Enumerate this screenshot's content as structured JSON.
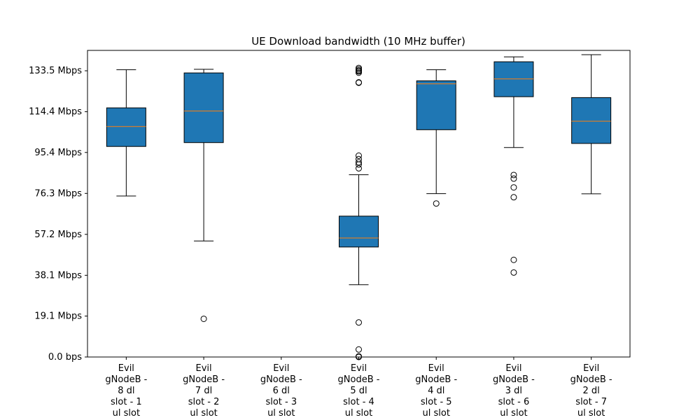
{
  "chart_data": {
    "type": "boxplot",
    "title": "UE Download bandwidth (10 MHz buffer)",
    "xlabel": "",
    "ylabel": "",
    "ylim": [
      0,
      143
    ],
    "yticks": [
      0,
      19.1,
      38.1,
      57.2,
      76.3,
      95.4,
      114.4,
      133.5
    ],
    "ytick_labels": [
      "0.0 bps",
      "19.1 Mbps",
      "38.1 Mbps",
      "57.2 Mbps",
      "76.3 Mbps",
      "95.4 Mbps",
      "114.4 Mbps",
      "133.5 Mbps"
    ],
    "grid": false,
    "categories": [
      [
        "Evil",
        "gNodeB -",
        "8 dl",
        "slot - 1",
        "ul slot"
      ],
      [
        "Evil",
        "gNodeB -",
        "7 dl",
        "slot - 2",
        "ul slot"
      ],
      [
        "Evil",
        "gNodeB -",
        "6 dl",
        "slot - 3",
        "ul slot"
      ],
      [
        "Evil",
        "gNodeB -",
        "5 dl",
        "slot - 4",
        "ul slot"
      ],
      [
        "Evil",
        "gNodeB -",
        "4 dl",
        "slot - 5",
        "ul slot"
      ],
      [
        "Evil",
        "gNodeB -",
        "3 dl",
        "slot - 6",
        "ul slot"
      ],
      [
        "Evil",
        "gNodeB -",
        "2 dl",
        "slot - 7",
        "ul slot"
      ]
    ],
    "boxes": [
      {
        "whisker_low": 75.1,
        "q1": 98.2,
        "median": 107.5,
        "q3": 116.2,
        "whisker_high": 134.0,
        "fliers": []
      },
      {
        "whisker_low": 54.1,
        "q1": 100.0,
        "median": 114.7,
        "q3": 132.5,
        "whisker_high": 134.2,
        "fliers": [
          17.8
        ]
      },
      null,
      {
        "whisker_low": 33.7,
        "q1": 51.3,
        "median": 55.5,
        "q3": 65.7,
        "whisker_high": 85.0,
        "fliers": [
          0.0,
          0.3,
          3.5,
          16.1,
          88.0,
          89.8,
          90.8,
          92.3,
          93.9,
          127.9,
          128.1,
          132.6,
          133.2,
          133.6,
          134.2,
          134.8
        ]
      },
      {
        "whisker_low": 76.2,
        "q1": 106.0,
        "median": 127.4,
        "q3": 128.8,
        "whisker_high": 134.0,
        "fliers": [
          71.6
        ]
      },
      {
        "whisker_low": 97.7,
        "q1": 121.4,
        "median": 129.7,
        "q3": 137.7,
        "whisker_high": 140.0,
        "fliers": [
          39.4,
          45.3,
          74.5,
          79.1,
          83.2,
          84.9
        ]
      },
      {
        "whisker_low": 76.1,
        "q1": 99.6,
        "median": 110.0,
        "q3": 121.0,
        "whisker_high": 141.0,
        "fliers": []
      }
    ],
    "colors": {
      "box": "#1f77b4",
      "median": "#ff7f0e",
      "line": "#000000"
    }
  }
}
